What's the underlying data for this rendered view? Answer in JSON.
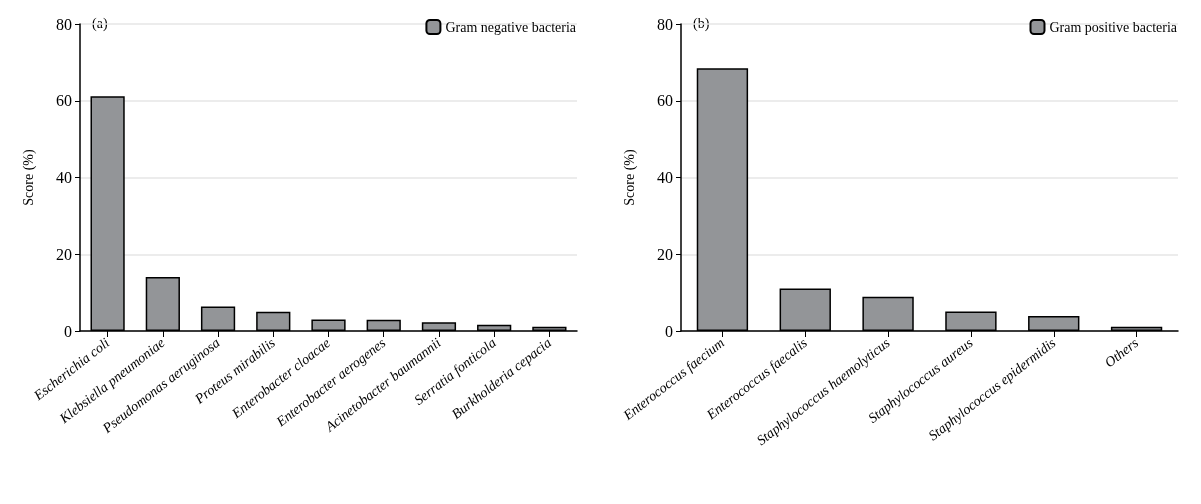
{
  "chart_data": [
    {
      "type": "bar",
      "ylabel": "Score (%)",
      "annotations": [
        "(a)"
      ],
      "categories": [
        "Escherichia coli",
        "Klebsiella pneumoniae",
        "Pseudomonas aeruginosa",
        "Proteus mirabilis",
        "Enterobacter cloacae",
        "Enterobacter aerogenes",
        "Acinetobacter baumannii",
        "Serratia fonticola",
        "Burkholderia cepacia"
      ],
      "series": [
        {
          "name": "Gram negative bacteria",
          "color": "#939598",
          "values": [
            61.2,
            14.1,
            6.4,
            5.0,
            3.0,
            2.9,
            2.3,
            1.6,
            1.1
          ]
        }
      ],
      "ylim": [
        0,
        80
      ],
      "yticks": [
        0,
        20,
        40,
        60,
        80
      ],
      "grid": "y",
      "legend": "top right"
    },
    {
      "type": "bar",
      "ylabel": "Score (%)",
      "annotations": [
        "(b)"
      ],
      "categories": [
        "Enterococcus faecium",
        "Enterococcus faecalis",
        "Staphylococcus haemolyticus",
        "Staphylococcus aureus",
        "Staphylococcus epidermidis",
        "Others"
      ],
      "series": [
        {
          "name": "Gram positive bacteria",
          "color": "#939598",
          "values": [
            68.5,
            11.1,
            8.9,
            5.1,
            3.9,
            1.1
          ]
        }
      ],
      "ylim": [
        0,
        80
      ],
      "yticks": [
        0,
        20,
        40,
        60,
        80
      ],
      "grid": "y",
      "legend": "top right"
    }
  ]
}
